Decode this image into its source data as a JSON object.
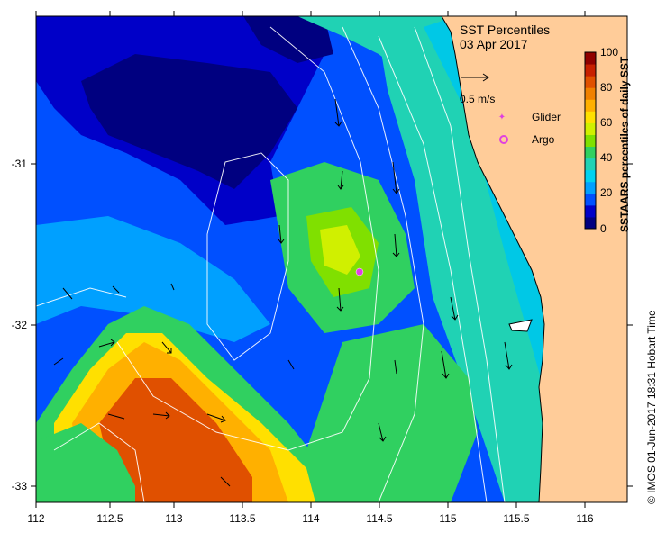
{
  "title": "SST Percentiles",
  "date": "03 Apr 2017",
  "colorbar": {
    "label": "SSTAARS percentiles of daily SST",
    "ticks": [
      "100",
      "80",
      "60",
      "40",
      "20",
      "0"
    ],
    "colors": [
      "#000080",
      "#0000c8",
      "#0050ff",
      "#00a0ff",
      "#00d2f0",
      "#20d2b4",
      "#30d060",
      "#80e000",
      "#d0f000",
      "#ffe000",
      "#ffb000",
      "#f08000",
      "#e05000",
      "#c82000",
      "#900000"
    ]
  },
  "legend": {
    "scale_label": "0.5 m/s",
    "glider_label": "Glider",
    "argo_label": "Argo",
    "glider_color": "#e040e0",
    "argo_color": "#e040e0"
  },
  "axes": {
    "x_ticks": [
      "112",
      "112.5",
      "113",
      "113.5",
      "114",
      "114.5",
      "115",
      "115.5",
      "116"
    ],
    "y_ticks": [
      "-31",
      "-32",
      "-33"
    ]
  },
  "credit": "© IMOS 01-Jun-2017 18:31 Hobart Time",
  "colors": {
    "land": "#ffcc99",
    "ocean_background": "#00c8e6"
  }
}
